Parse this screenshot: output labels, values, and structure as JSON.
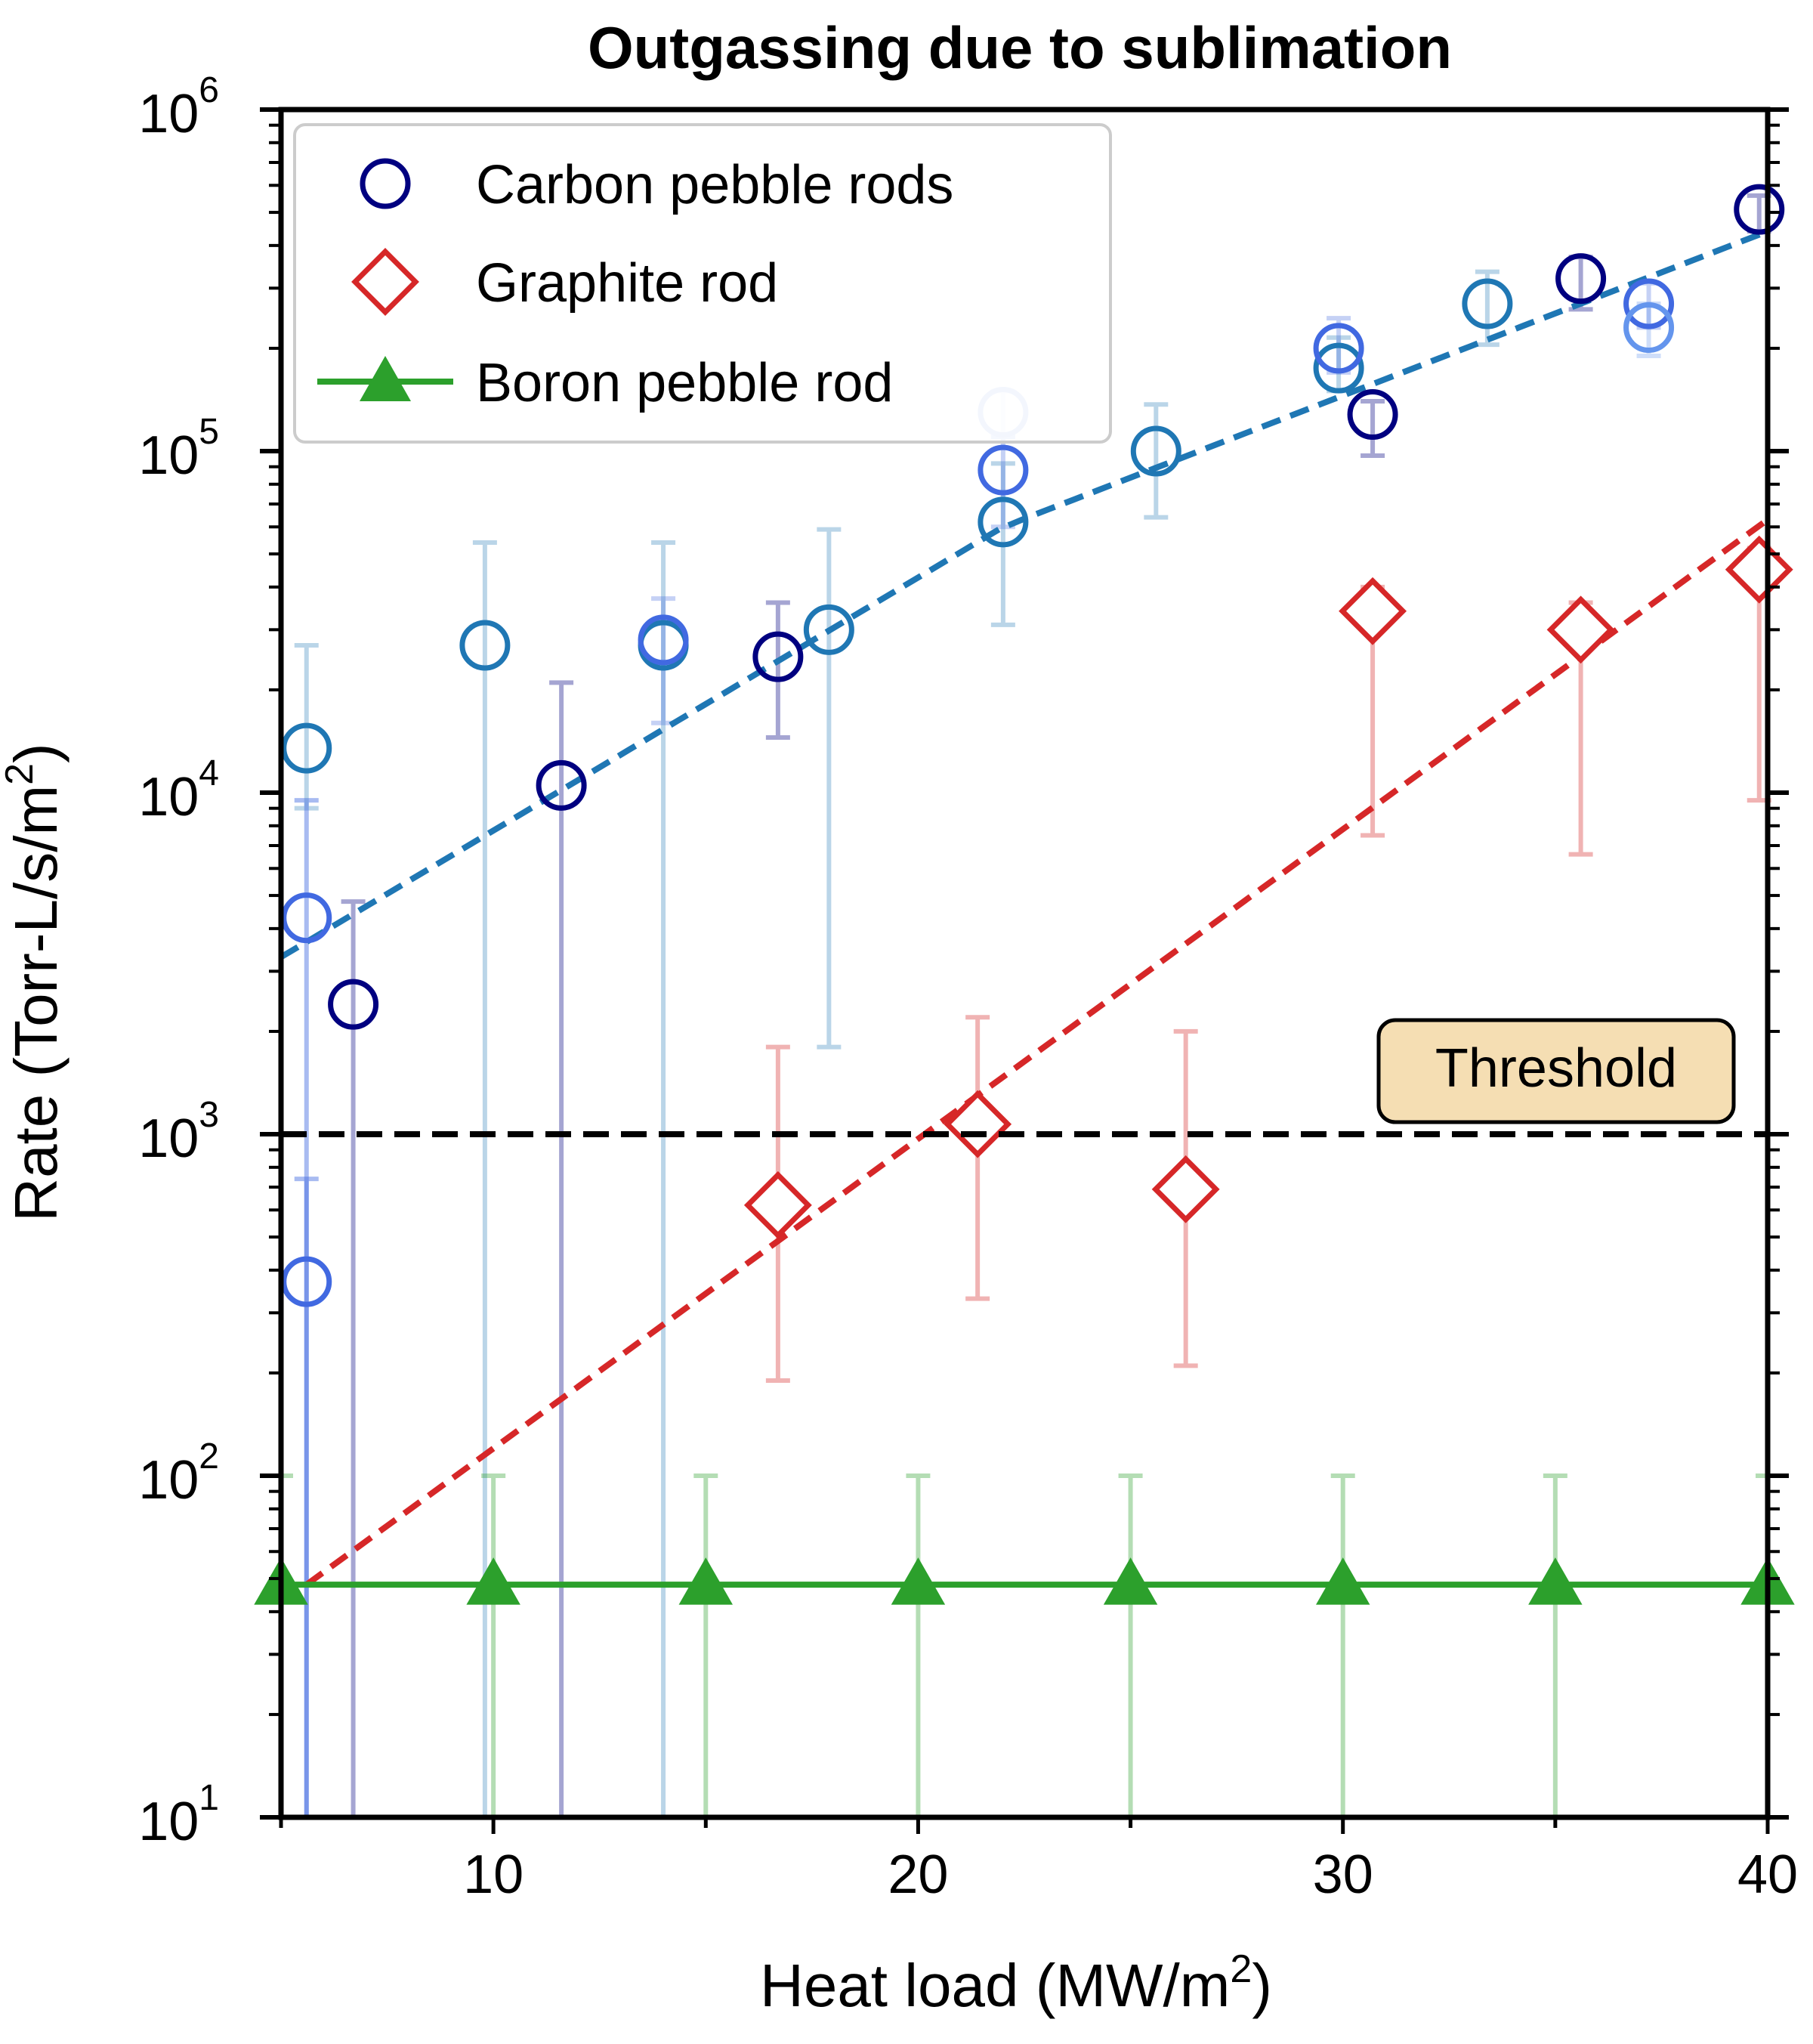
{
  "chart_data": {
    "type": "scatter",
    "title": "Outgassing due to sublimation",
    "xlabel": "Heat load (MW/m",
    "xlabel_sup": "2",
    "xlabel_close": ")",
    "ylabel": "Rate (Torr-L/s/m",
    "ylabel_sup": "2",
    "ylabel_close": ")",
    "x_scale": "linear",
    "y_scale": "log",
    "xlim": [
      5,
      40
    ],
    "ylim": [
      10,
      1000000
    ],
    "x_ticks": [
      10,
      20,
      30,
      40
    ],
    "x_tick_labels": [
      "10",
      "20",
      "30",
      "40"
    ],
    "y_ticks": [
      {
        "value": 10,
        "base": "10",
        "exp": "1"
      },
      {
        "value": 100,
        "base": "10",
        "exp": "2"
      },
      {
        "value": 1000,
        "base": "10",
        "exp": "3"
      },
      {
        "value": 10000,
        "base": "10",
        "exp": "4"
      },
      {
        "value": 100000,
        "base": "10",
        "exp": "5"
      },
      {
        "value": 1000000,
        "base": "10",
        "exp": "6"
      }
    ],
    "grid": false,
    "legend_position": "top-left",
    "threshold": {
      "value": 1000,
      "label": "Threshold",
      "color": "#000000",
      "box_color": "#f5deb3"
    },
    "series": [
      {
        "name": "Carbon pebble rods",
        "marker": "circle-open",
        "legend_color": "#000080",
        "points": [
          {
            "x": 6.7,
            "y": 2400,
            "err_low": 10,
            "err_high": 4800,
            "color": "#000080",
            "opacity": 0.35
          },
          {
            "x": 11.6,
            "y": 10500,
            "err_low": 10,
            "err_high": 21000,
            "color": "#000080",
            "opacity": 0.35
          },
          {
            "x": 16.7,
            "y": 25000,
            "err_low": 14500,
            "err_high": 36000,
            "color": "#000080",
            "opacity": 0.35
          },
          {
            "x": 30.7,
            "y": 128000,
            "err_low": 97000,
            "err_high": 140000,
            "color": "#000080",
            "opacity": 0.35
          },
          {
            "x": 35.6,
            "y": 320000,
            "err_low": 260000,
            "err_high": 370000,
            "color": "#000080",
            "opacity": 0.35
          },
          {
            "x": 39.8,
            "y": 510000,
            "err_low": 440000,
            "err_high": 560000,
            "color": "#000080",
            "opacity": 0.35
          },
          {
            "x": 5.6,
            "y": 13500,
            "err_low": 9000,
            "err_high": 27000,
            "color": "#1f77b4",
            "opacity": 0.3
          },
          {
            "x": 9.8,
            "y": 27000,
            "err_low": 10,
            "err_high": 54000,
            "color": "#1f77b4",
            "opacity": 0.3
          },
          {
            "x": 14.0,
            "y": 27000,
            "err_low": 10,
            "err_high": 54000,
            "color": "#1f77b4",
            "opacity": 0.3
          },
          {
            "x": 17.9,
            "y": 30000,
            "err_low": 1800,
            "err_high": 59000,
            "color": "#1f77b4",
            "opacity": 0.3
          },
          {
            "x": 22.0,
            "y": 62000,
            "err_low": 31000,
            "err_high": 92000,
            "color": "#1f77b4",
            "opacity": 0.3
          },
          {
            "x": 25.6,
            "y": 100000,
            "err_low": 64000,
            "err_high": 137000,
            "color": "#1f77b4",
            "opacity": 0.3
          },
          {
            "x": 29.9,
            "y": 175000,
            "err_low": 150000,
            "err_high": 215000,
            "color": "#1f77b4",
            "opacity": 0.3
          },
          {
            "x": 33.4,
            "y": 270000,
            "err_low": 205000,
            "err_high": 335000,
            "color": "#1f77b4",
            "opacity": 0.3
          },
          {
            "x": 29.9,
            "y": 200000,
            "err_low": 170000,
            "err_high": 245000,
            "color": "#4169e1",
            "opacity": 0.3
          },
          {
            "x": 5.6,
            "y": 4300,
            "err_low": 10,
            "err_high": 9500,
            "color": "#4169e1",
            "opacity": 0.45
          },
          {
            "x": 5.6,
            "y": 370,
            "err_low": 10,
            "err_high": 740,
            "color": "#4169e1",
            "opacity": 0.45
          },
          {
            "x": 14.0,
            "y": 28000,
            "err_low": 16000,
            "err_high": 37000,
            "color": "#4169e1",
            "opacity": 0.3
          },
          {
            "x": 22.0,
            "y": 88000,
            "err_low": 60000,
            "err_high": 110000,
            "color": "#4169e1",
            "opacity": 0.3
          },
          {
            "x": 22.0,
            "y": 130000,
            "err_low": 110000,
            "err_high": 150000,
            "color": "#b0c4f0",
            "opacity": 0.3
          },
          {
            "x": 37.2,
            "y": 270000,
            "err_low": 230000,
            "err_high": 310000,
            "color": "#4169e1",
            "opacity": 0.3
          },
          {
            "x": 37.2,
            "y": 230000,
            "err_low": 190000,
            "err_high": 270000,
            "color": "#6495ed",
            "opacity": 0.3
          }
        ],
        "fit": {
          "color": "#1f77b4",
          "x_start": 5.0,
          "x_end": 40.0,
          "y_start": 3300,
          "y_mid_x": 22.0,
          "y_mid": 60000,
          "y_end": 440000
        }
      },
      {
        "name": "Graphite rod",
        "marker": "diamond-open",
        "legend_color": "#d62728",
        "points": [
          {
            "x": 16.7,
            "y": 620,
            "err_low": 190,
            "err_high": 1800,
            "color": "#d62728",
            "opacity": 0.35
          },
          {
            "x": 21.4,
            "y": 1070,
            "err_low": 330,
            "err_high": 2200,
            "color": "#d62728",
            "opacity": 0.35
          },
          {
            "x": 26.3,
            "y": 690,
            "err_low": 210,
            "err_high": 2000,
            "color": "#d62728",
            "opacity": 0.35
          },
          {
            "x": 30.7,
            "y": 34000,
            "err_low": 7500,
            "err_high": 40000,
            "color": "#d62728",
            "opacity": 0.35
          },
          {
            "x": 35.6,
            "y": 30000,
            "err_low": 6600,
            "err_high": 36000,
            "color": "#d62728",
            "opacity": 0.35
          },
          {
            "x": 39.8,
            "y": 45000,
            "err_low": 9500,
            "err_high": 52000,
            "color": "#d62728",
            "opacity": 0.35
          }
        ],
        "fit": {
          "color": "#d62728",
          "x_start": 5.6,
          "x_end": 40.0,
          "y_start": 48,
          "y_end": 63000
        }
      },
      {
        "name": "Boron pebble rod",
        "marker": "triangle-filled-line",
        "legend_color": "#2ca02c",
        "points": [
          {
            "x": 5.0,
            "y": 48,
            "err_low": 10,
            "err_high": 100
          },
          {
            "x": 10.0,
            "y": 48,
            "err_low": 10,
            "err_high": 100
          },
          {
            "x": 15.0,
            "y": 48,
            "err_low": 10,
            "err_high": 100
          },
          {
            "x": 20.0,
            "y": 48,
            "err_low": 10,
            "err_high": 100
          },
          {
            "x": 25.0,
            "y": 48,
            "err_low": 10,
            "err_high": 100
          },
          {
            "x": 30.0,
            "y": 48,
            "err_low": 10,
            "err_high": 100
          },
          {
            "x": 35.0,
            "y": 48,
            "err_low": 10,
            "err_high": 100
          },
          {
            "x": 40.0,
            "y": 48,
            "err_low": 10,
            "err_high": 100
          }
        ],
        "color": "#2ca02c"
      }
    ]
  }
}
